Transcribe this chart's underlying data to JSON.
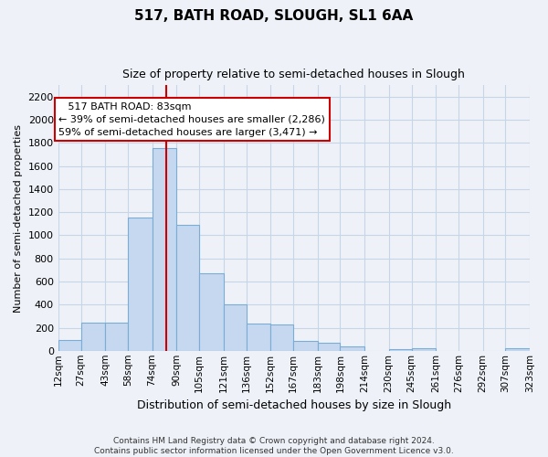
{
  "title": "517, BATH ROAD, SLOUGH, SL1 6AA",
  "subtitle": "Size of property relative to semi-detached houses in Slough",
  "xlabel": "Distribution of semi-detached houses by size in Slough",
  "ylabel": "Number of semi-detached properties",
  "footer_line1": "Contains HM Land Registry data © Crown copyright and database right 2024.",
  "footer_line2": "Contains public sector information licensed under the Open Government Licence v3.0.",
  "annotation_title": "517 BATH ROAD: 83sqm",
  "annotation_line1": "← 39% of semi-detached houses are smaller (2,286)",
  "annotation_line2": "59% of semi-detached houses are larger (3,471) →",
  "property_size": 83,
  "bin_edges": [
    12,
    27,
    43,
    58,
    74,
    90,
    105,
    121,
    136,
    152,
    167,
    183,
    198,
    214,
    230,
    245,
    261,
    276,
    292,
    307,
    323
  ],
  "bin_labels": [
    "12sqm",
    "27sqm",
    "43sqm",
    "58sqm",
    "74sqm",
    "90sqm",
    "105sqm",
    "121sqm",
    "136sqm",
    "152sqm",
    "167sqm",
    "183sqm",
    "198sqm",
    "214sqm",
    "230sqm",
    "245sqm",
    "261sqm",
    "276sqm",
    "292sqm",
    "307sqm",
    "323sqm"
  ],
  "counts": [
    90,
    245,
    240,
    1155,
    1760,
    1090,
    670,
    400,
    235,
    230,
    85,
    70,
    35,
    0,
    15,
    20,
    0,
    0,
    0,
    25
  ],
  "bar_color": "#c5d8f0",
  "bar_edge_color": "#7aacd6",
  "vline_color": "#cc0000",
  "annotation_box_color": "#ffffff",
  "annotation_box_edge": "#cc0000",
  "grid_color": "#c8d4e8",
  "background_color": "#eef2f8",
  "plot_bg_color": "#eef2f8",
  "ylim": [
    0,
    2300
  ],
  "yticks": [
    0,
    200,
    400,
    600,
    800,
    1000,
    1200,
    1400,
    1600,
    1800,
    2000,
    2200
  ]
}
